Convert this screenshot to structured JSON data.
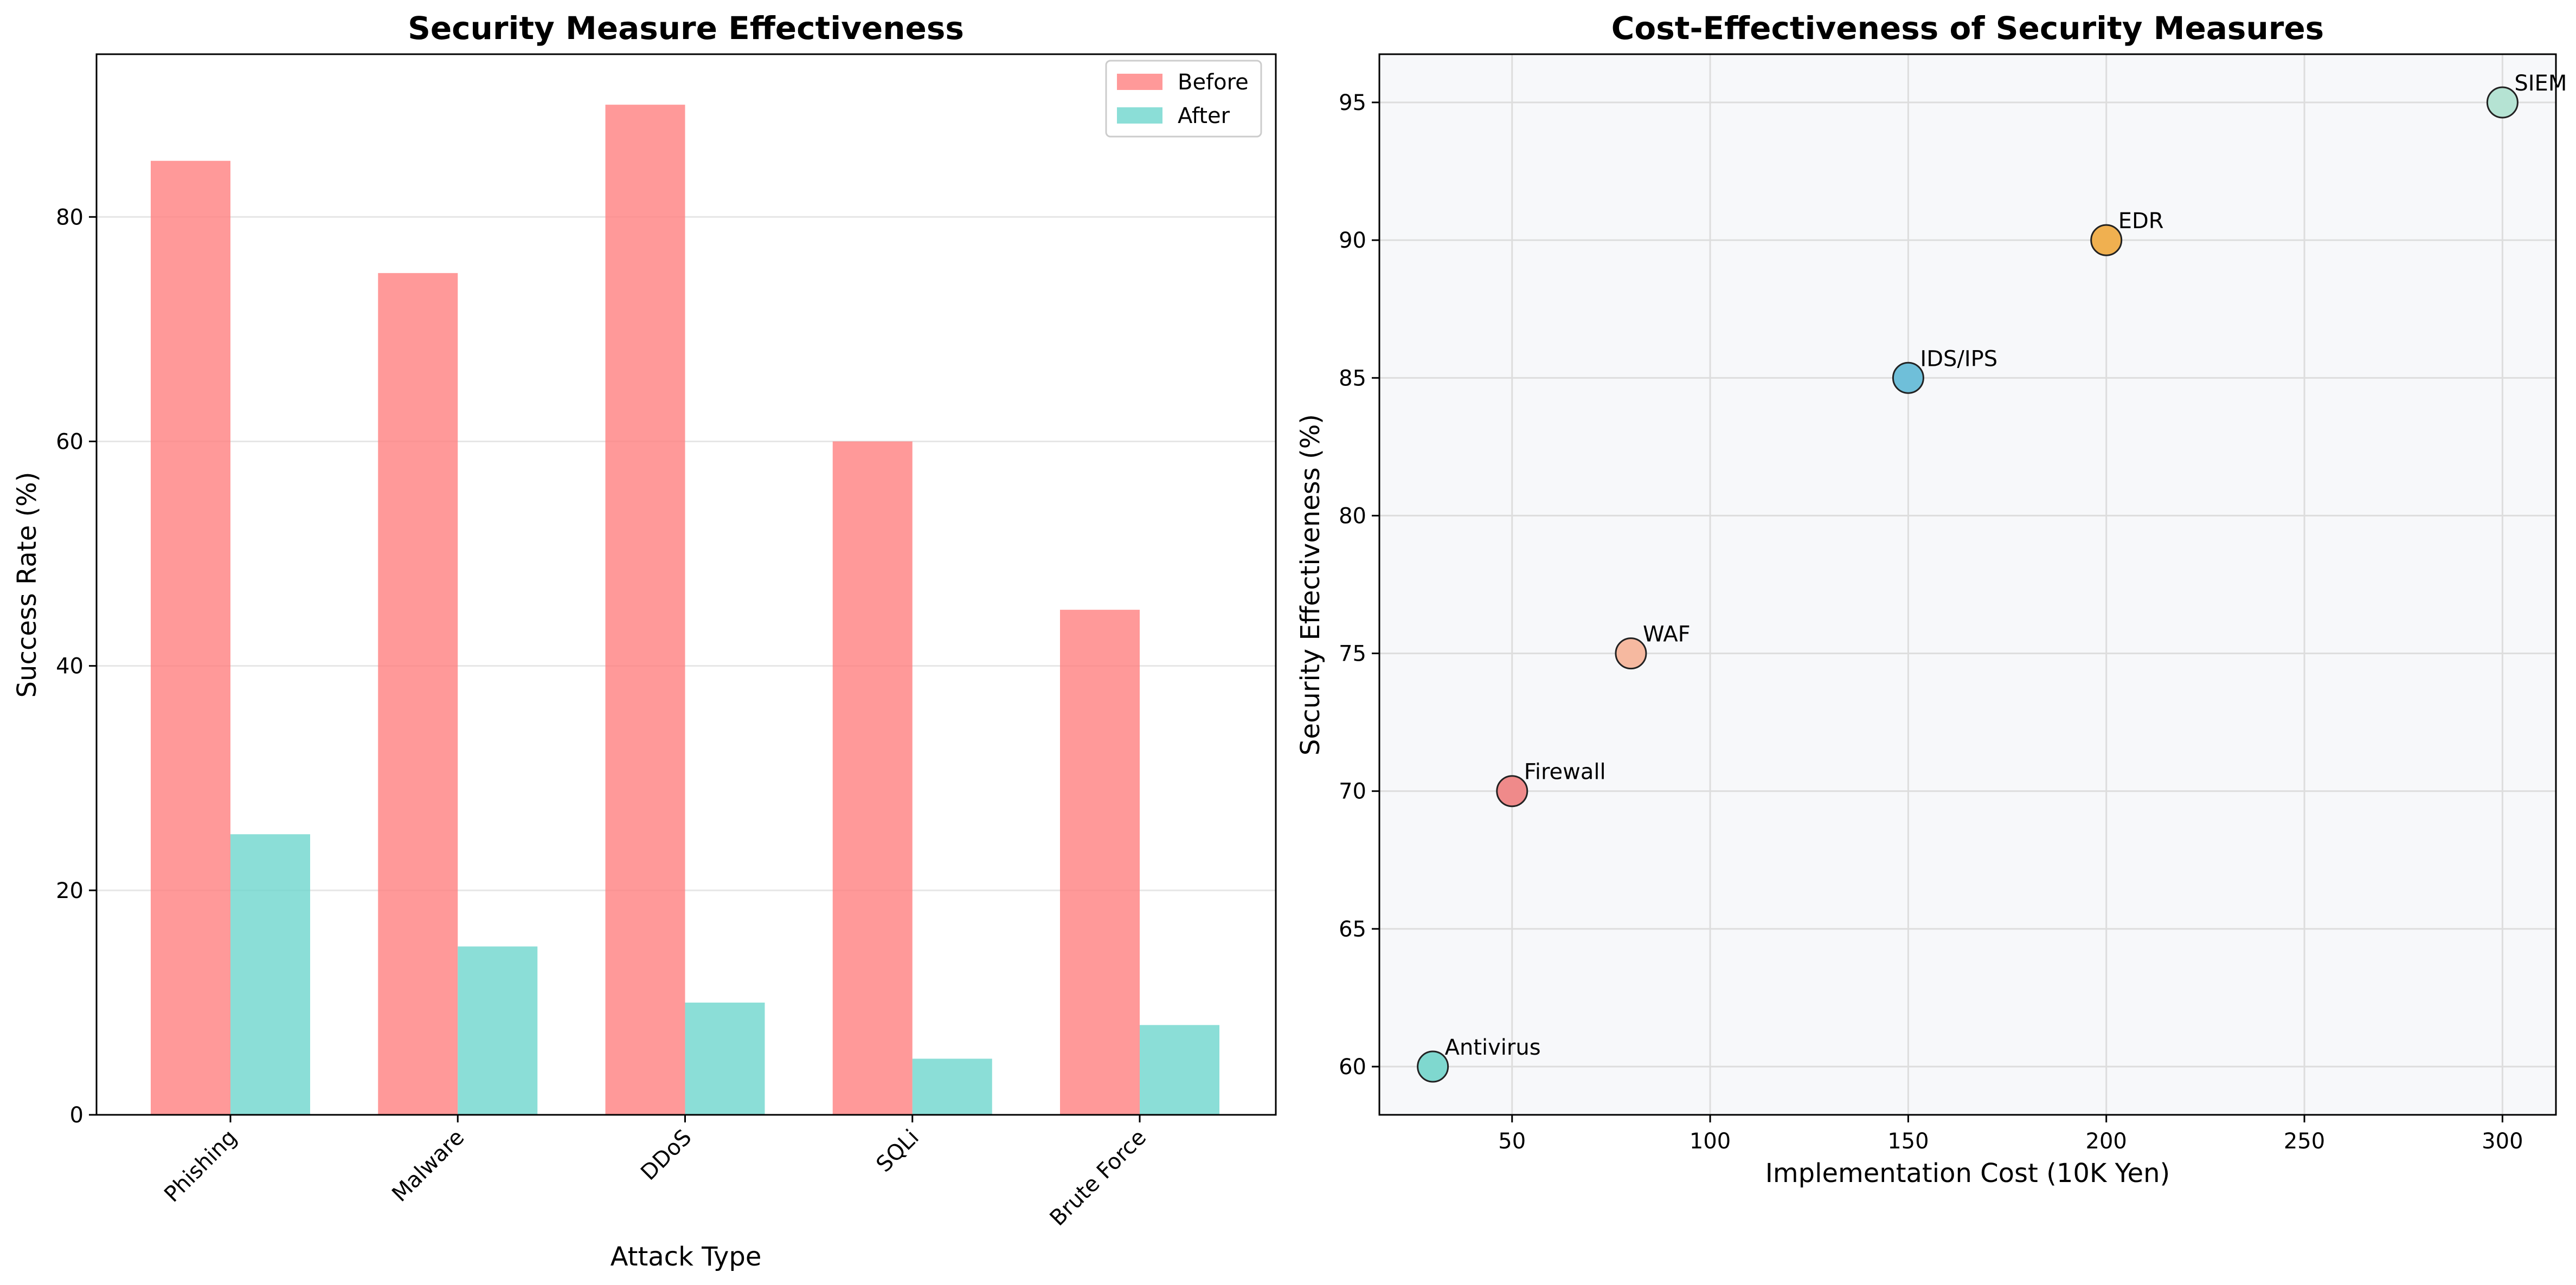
{
  "chart_data": [
    {
      "type": "bar",
      "title": "Security Measure Effectiveness",
      "xlabel": "Attack Type",
      "ylabel": "Success Rate (%)",
      "ylim": [
        0,
        94.5
      ],
      "yticks": [
        0,
        20,
        40,
        60,
        80
      ],
      "grid": "horizontal",
      "legend_position": "top-right",
      "categories": [
        "Phishing",
        "Malware",
        "DDoS",
        "SQLi",
        "Brute Force"
      ],
      "series": [
        {
          "name": "Before",
          "color": "#FF8080",
          "values": [
            85,
            75,
            90,
            60,
            45
          ]
        },
        {
          "name": "After",
          "color": "#6ED6CD",
          "values": [
            25,
            15,
            10,
            5,
            8
          ]
        }
      ]
    },
    {
      "type": "scatter",
      "title": "Cost-Effectiveness of Security Measures",
      "xlabel": "Implementation Cost (10K Yen)",
      "ylabel": "Security Effectiveness (%)",
      "xlim": [
        16.5,
        313.5
      ],
      "ylim": [
        58.25,
        96.75
      ],
      "xticks": [
        50,
        100,
        150,
        200,
        250,
        300
      ],
      "yticks": [
        60,
        65,
        70,
        75,
        80,
        85,
        90,
        95
      ],
      "grid": "both",
      "background": "#F7F8FA",
      "points": [
        {
          "label": "Firewall",
          "x": 50,
          "y": 70,
          "color": "#EF8A8A"
        },
        {
          "label": "Antivirus",
          "x": 30,
          "y": 60,
          "color": "#7FD8CF"
        },
        {
          "label": "IDS/IPS",
          "x": 150,
          "y": 85,
          "color": "#6FBFD9"
        },
        {
          "label": "WAF",
          "x": 80,
          "y": 75,
          "color": "#F6B9A0"
        },
        {
          "label": "SIEM",
          "x": 300,
          "y": 95,
          "color": "#B5E3D3"
        },
        {
          "label": "EDR",
          "x": 200,
          "y": 90,
          "color": "#F0B050"
        }
      ]
    }
  ]
}
